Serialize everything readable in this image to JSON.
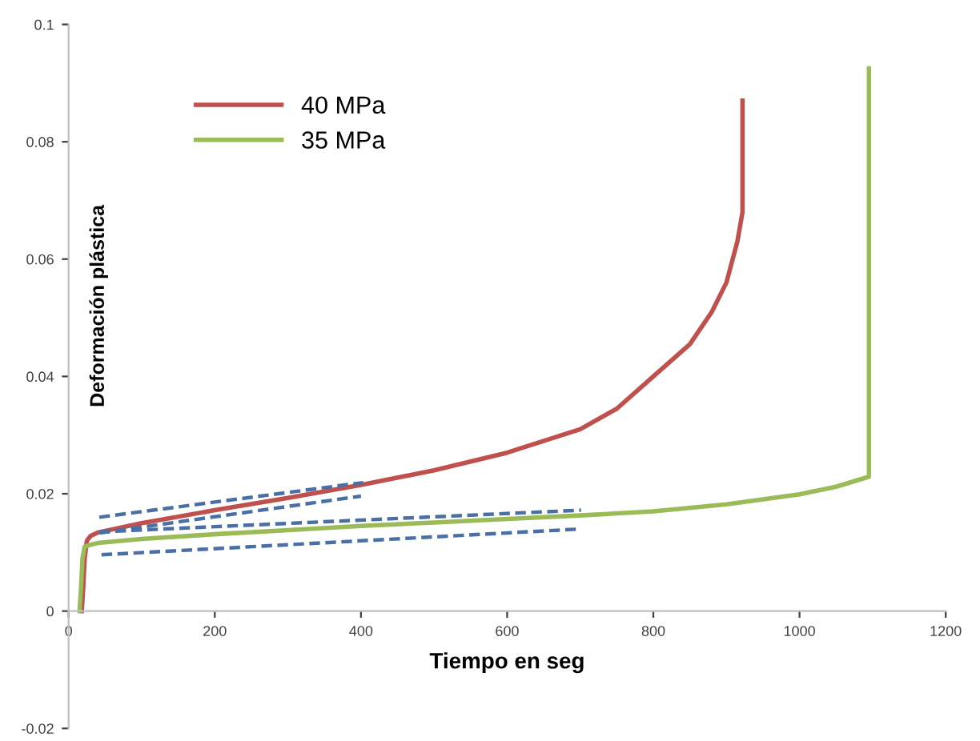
{
  "chart_data": {
    "type": "line",
    "xlabel": "Tiempo en seg",
    "ylabel": "Deformación plástica",
    "xlim": [
      0,
      1200
    ],
    "xticks": [
      0,
      200,
      400,
      600,
      800,
      1000,
      1200
    ],
    "ylim": [
      -0.02,
      0.1
    ],
    "yticks": [
      -0.02,
      0,
      0.02,
      0.04,
      0.06,
      0.08,
      0.1
    ],
    "grid": false,
    "legend": "top left",
    "marker": "none",
    "line_style": "solid",
    "series": [
      {
        "name": "40 MPa",
        "color": "#c0504d",
        "x": [
          18,
          20,
          22,
          25,
          30,
          40,
          100,
          200,
          300,
          400,
          500,
          600,
          700,
          750,
          800,
          850,
          880,
          900,
          915,
          922,
          922
        ],
        "values": [
          0,
          0.004,
          0.009,
          0.012,
          0.0128,
          0.0134,
          0.015,
          0.0172,
          0.0193,
          0.0215,
          0.024,
          0.027,
          0.031,
          0.0345,
          0.04,
          0.0455,
          0.051,
          0.056,
          0.063,
          0.068,
          0.087
        ]
      },
      {
        "name": "35 MPa",
        "color": "#9bbb59",
        "x": [
          15,
          17,
          19,
          22,
          30,
          40,
          100,
          200,
          300,
          400,
          500,
          600,
          700,
          800,
          900,
          1000,
          1050,
          1095,
          1095
        ],
        "values": [
          0,
          0.004,
          0.009,
          0.011,
          0.0113,
          0.0116,
          0.0123,
          0.0131,
          0.0138,
          0.0145,
          0.0151,
          0.0157,
          0.0163,
          0.017,
          0.0182,
          0.0199,
          0.0212,
          0.0229,
          0.0925
        ]
      },
      {
        "color": "#4a6fa5",
        "line_style": "dashed",
        "x": [
          42,
          403
        ],
        "values": [
          0.016,
          0.0219
        ]
      },
      {
        "color": "#4a6fa5",
        "line_style": "dashed",
        "x": [
          42,
          400
        ],
        "values": [
          0.0133,
          0.0196
        ]
      },
      {
        "color": "#4a6fa5",
        "line_style": "dashed",
        "x": [
          42,
          701
        ],
        "values": [
          0.0135,
          0.0172
        ]
      },
      {
        "color": "#4a6fa5",
        "line_style": "dashed",
        "x": [
          45,
          701
        ],
        "values": [
          0.0096,
          0.014
        ]
      }
    ]
  }
}
